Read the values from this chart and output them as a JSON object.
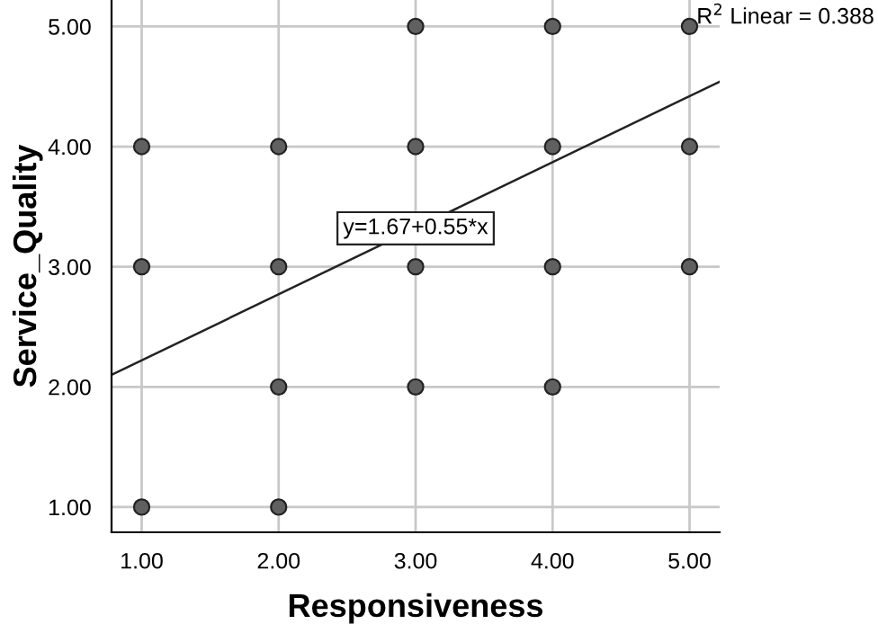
{
  "chart_data": {
    "type": "scatter",
    "xlabel": "Responsiveness",
    "ylabel": "Service_Quality",
    "xlim": [
      0.78,
      5.22
    ],
    "ylim": [
      0.79,
      5.22
    ],
    "xticks": [
      {
        "value": 1,
        "label": "1.00"
      },
      {
        "value": 2,
        "label": "2.00"
      },
      {
        "value": 3,
        "label": "3.00"
      },
      {
        "value": 4,
        "label": "4.00"
      },
      {
        "value": 5,
        "label": "5.00"
      }
    ],
    "yticks": [
      {
        "value": 1,
        "label": "1.00"
      },
      {
        "value": 2,
        "label": "2.00"
      },
      {
        "value": 3,
        "label": "3.00"
      },
      {
        "value": 4,
        "label": "4.00"
      },
      {
        "value": 5,
        "label": "5.00"
      }
    ],
    "grid": true,
    "marker": "circle",
    "series": [
      {
        "color": "#606060",
        "x": [
          1,
          1,
          1,
          2,
          2,
          2,
          2,
          3,
          3,
          3,
          3,
          4,
          4,
          4,
          4,
          5,
          5,
          5
        ],
        "values": [
          4,
          3,
          1,
          4,
          3,
          2,
          1,
          5,
          4,
          3,
          2,
          5,
          4,
          3,
          2,
          5,
          4,
          3
        ]
      },
      {
        "type": "line",
        "color": "#222222",
        "x": [
          0.78,
          5.22
        ],
        "values": [
          2.1,
          4.54
        ],
        "marker": "none"
      }
    ],
    "annotations": [
      "R$^{2}$ Linear = 0.388",
      {
        "text": "y=1.67+0.55*x",
        "x": 3,
        "y": 3.32
      }
    ]
  }
}
